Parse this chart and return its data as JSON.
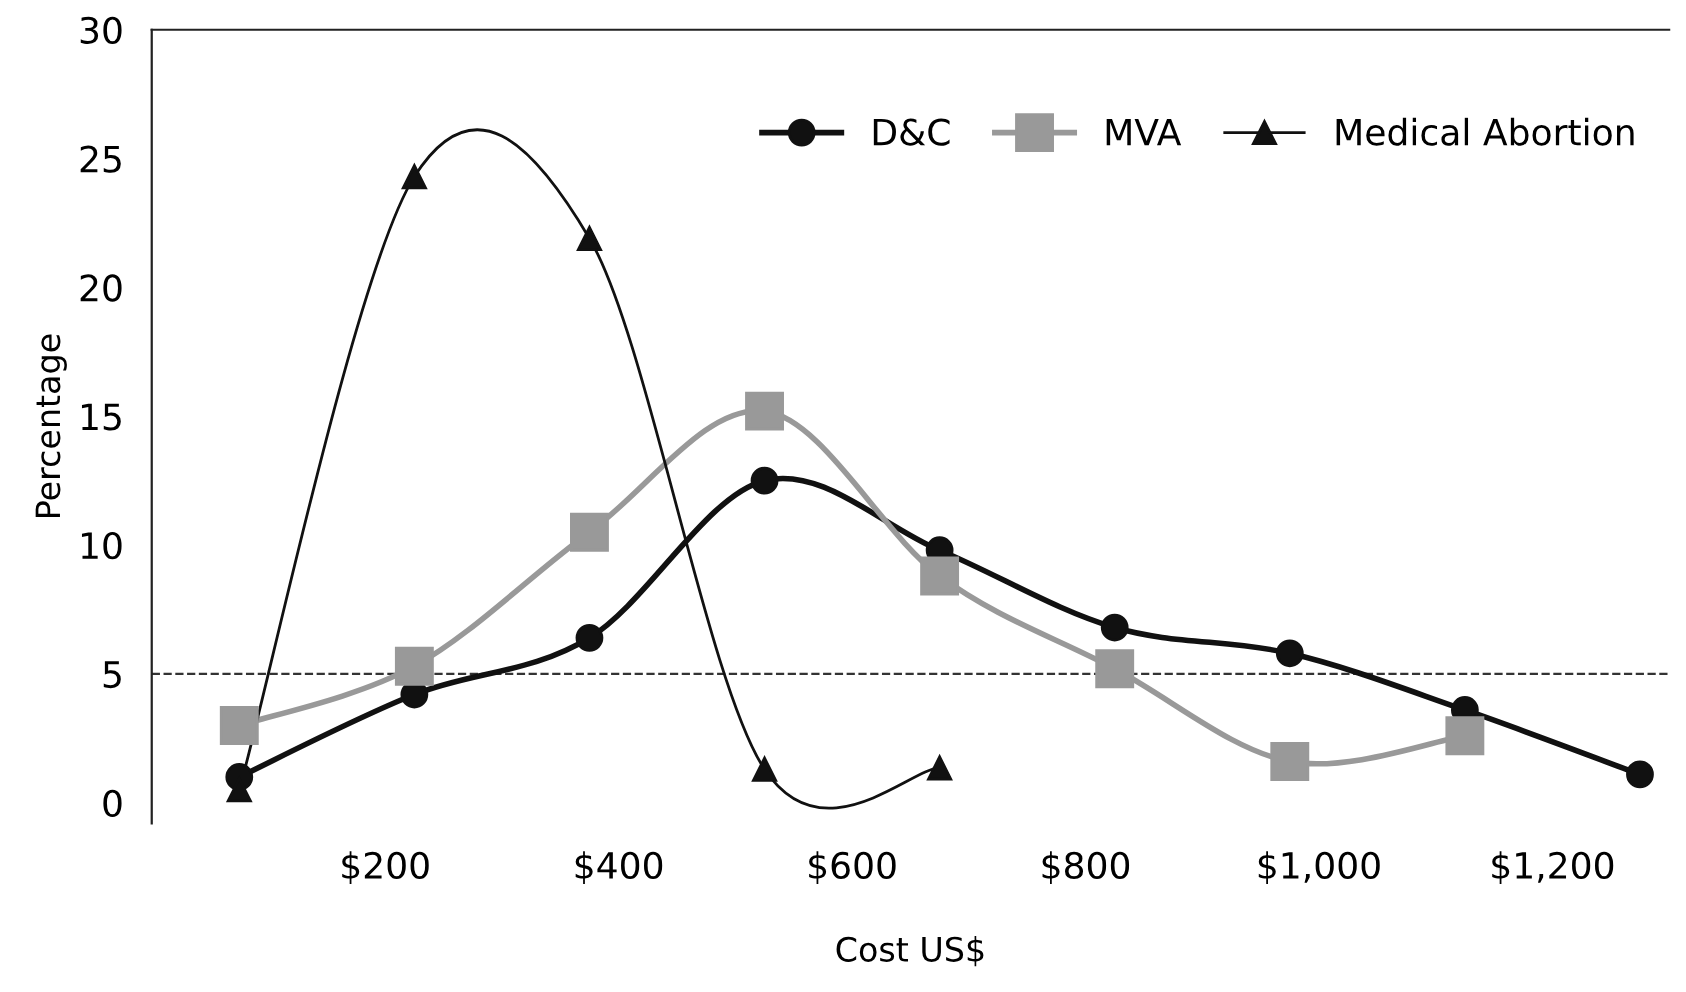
{
  "chart_data": {
    "type": "line",
    "xlabel": "Cost US$",
    "ylabel": "Percentage",
    "x": [
      75,
      225,
      375,
      525,
      675,
      825,
      975,
      1125,
      1275
    ],
    "series": [
      {
        "name": "D&C",
        "color": "#111111",
        "marker": "circle",
        "values": [
          1.0,
          4.2,
          6.4,
          12.5,
          9.8,
          6.8,
          5.8,
          3.6,
          1.1
        ]
      },
      {
        "name": "MVA",
        "color": "#999999",
        "marker": "square",
        "values": [
          3.0,
          5.3,
          10.5,
          15.2,
          8.8,
          5.2,
          1.6,
          2.6,
          null
        ]
      },
      {
        "name": "Medical Abortion",
        "color": "#111111",
        "marker": "triangle",
        "values": [
          0.5,
          24.3,
          21.9,
          1.3,
          1.35,
          null,
          null,
          null,
          null
        ]
      }
    ],
    "xlim": [
      0,
      1300
    ],
    "xticks": [
      {
        "value": 200,
        "label": "$200"
      },
      {
        "value": 400,
        "label": "$400"
      },
      {
        "value": 600,
        "label": "$600"
      },
      {
        "value": 800,
        "label": "$800"
      },
      {
        "value": 1000,
        "label": "$1,000"
      },
      {
        "value": 1200,
        "label": "$1,200"
      }
    ],
    "ylim": [
      -0.8,
      30
    ],
    "yticks": [
      0,
      5,
      10,
      15,
      20,
      25,
      30
    ],
    "ref_lines": [
      {
        "axis": "y",
        "value": 5,
        "line_style": "dashed",
        "color": "#333333"
      }
    ],
    "grid": false,
    "legend": "top right"
  }
}
